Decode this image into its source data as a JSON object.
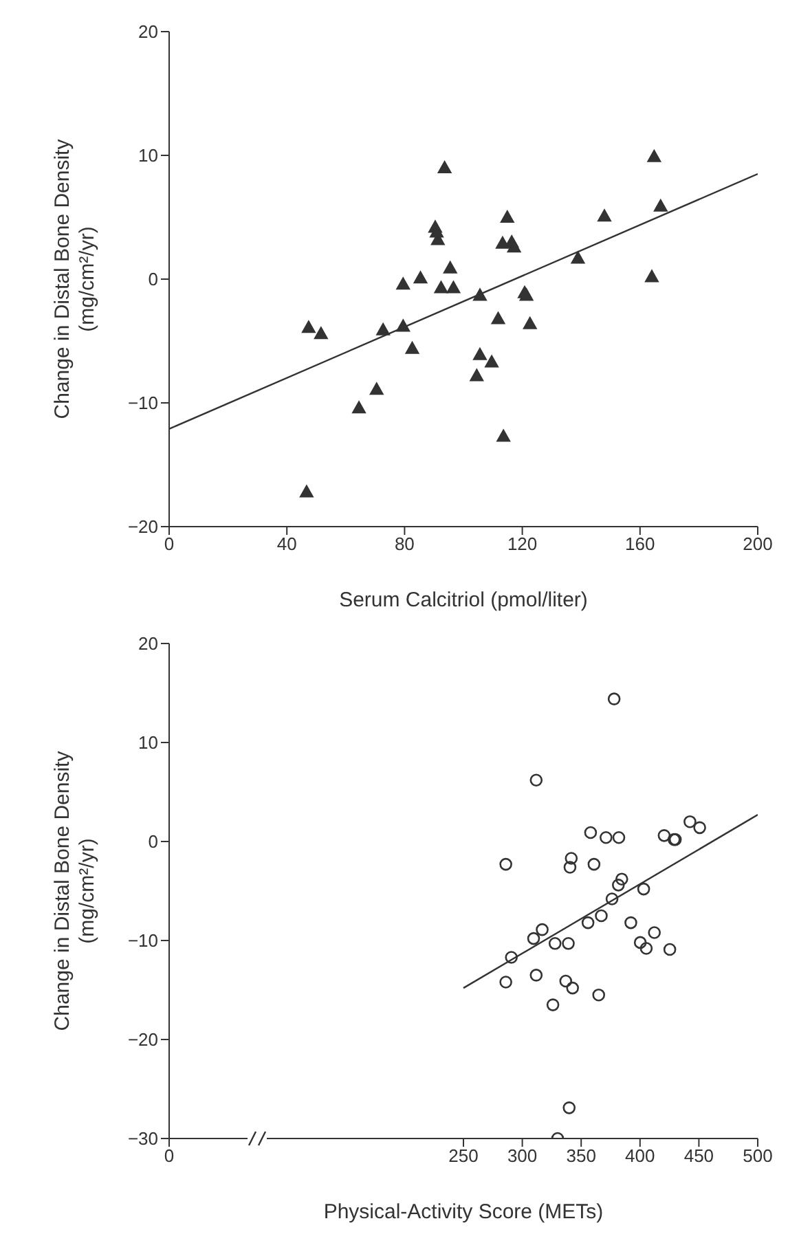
{
  "chart_data": [
    {
      "type": "scatter",
      "xlabel": "Serum Calcitriol (pmol/liter)",
      "ylabel": "Change in Distal Bone Density\n(mg/cm²/yr)",
      "xlim": [
        0,
        200
      ],
      "xticks": [
        0,
        40,
        80,
        120,
        160,
        200
      ],
      "ylim": [
        -20,
        20
      ],
      "yticks": [
        -20,
        -10,
        0,
        10,
        20
      ],
      "series": [
        {
          "type": "scatter",
          "color": "#333333",
          "marker": "triangle",
          "x": [
            93.6,
            164.8,
            167,
            147.9,
            114.9,
            90.4,
            90.9,
            91.3,
            113.3,
            116.4,
            117.2,
            138.9,
            164,
            95.5,
            79.5,
            85.4,
            92.4,
            96.6,
            105.6,
            120.8,
            121.4,
            111.8,
            122.6,
            47.4,
            51.6,
            72.7,
            79.5,
            82.6,
            105.6,
            109.6,
            104.5,
            70.5,
            64.5,
            113.6,
            46.7
          ],
          "values": [
            9,
            9.9,
            5.9,
            5.1,
            5,
            4.2,
            3.8,
            3.2,
            2.9,
            3,
            2.6,
            1.7,
            0.2,
            0.9,
            -0.4,
            0.1,
            -0.7,
            -0.7,
            -1.3,
            -1.1,
            -1.3,
            -3.2,
            -3.6,
            -3.9,
            -4.4,
            -4.1,
            -3.8,
            -5.6,
            -6.1,
            -6.7,
            -7.8,
            -8.9,
            -10.4,
            -12.7,
            -17.2
          ]
        },
        {
          "type": "line",
          "color": "#333333",
          "marker": "none",
          "line_style": "solid",
          "x": [
            0,
            200
          ],
          "values": [
            -12.1,
            8.5
          ]
        }
      ]
    },
    {
      "type": "scatter",
      "xlabel": "Physical-Activity Score (METs)",
      "ylabel": "Change in Distal Bone Density\n(mg/cm²/yr)",
      "xlim": [
        0,
        500
      ],
      "xticks": [
        0,
        250,
        300,
        350,
        400,
        450,
        500
      ],
      "ylim": [
        -30,
        20
      ],
      "yticks": [
        -30,
        -20,
        -10,
        0,
        10,
        20
      ],
      "series": [
        {
          "type": "scatter",
          "color": "#333333",
          "marker": "circle",
          "x": [
            378,
            311.8,
            286,
            341.6,
            340.5,
            358,
            360.9,
            371.1,
            382,
            420.5,
            428.9,
            430,
            442.4,
            450.7,
            384.5,
            381.6,
            376.2,
            403.1,
            367.1,
            355.8,
            392.2,
            316.9,
            309.6,
            327.8,
            339.1,
            400.2,
            405.3,
            412.2,
            425.3,
            290.7,
            286,
            311.8,
            336.9,
            342.7,
            326,
            364.9,
            339.8,
            330
          ],
          "values": [
            14.4,
            6.2,
            -2.3,
            -1.7,
            -2.6,
            0.9,
            -2.3,
            0.4,
            0.4,
            0.6,
            0.2,
            0.2,
            2,
            1.4,
            -3.8,
            -4.4,
            -5.8,
            -4.8,
            -7.5,
            -8.2,
            -8.2,
            -8.9,
            -9.8,
            -10.3,
            -10.3,
            -10.2,
            -10.8,
            -9.2,
            -10.9,
            -11.7,
            -14.2,
            -13.5,
            -14.1,
            -14.8,
            -16.5,
            -15.5,
            -26.9,
            -30
          ]
        },
        {
          "type": "line",
          "color": "#333333",
          "marker": "none",
          "line_style": "solid",
          "x": [
            250,
            500
          ],
          "values": [
            -14.8,
            2.7
          ]
        }
      ]
    }
  ]
}
